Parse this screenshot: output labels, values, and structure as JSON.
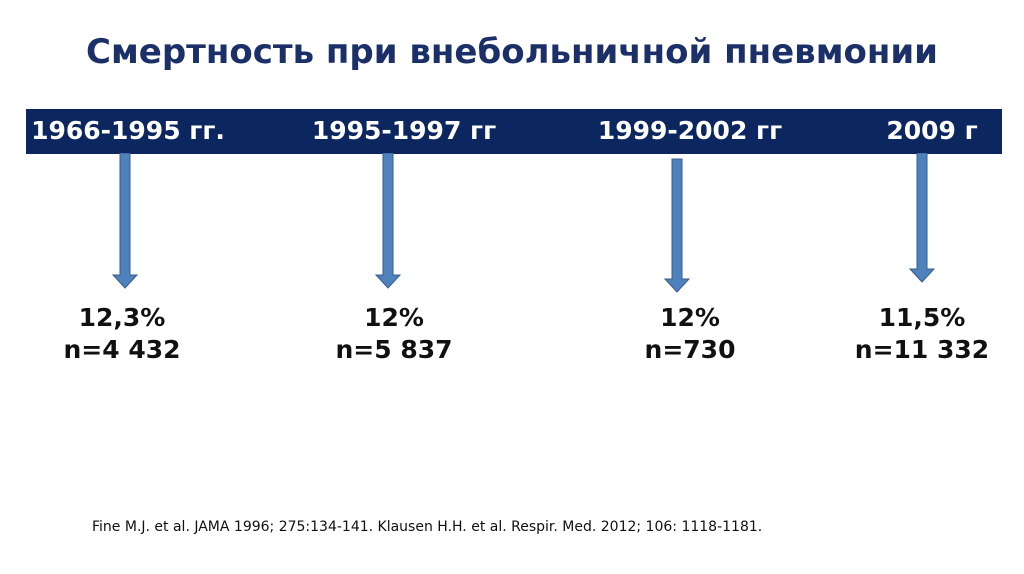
{
  "title": "Смертность при внебольничной пневмонии",
  "periods": [
    {
      "label": "1966-1995 гг.",
      "percent": "12,3%",
      "n": "n=4 432"
    },
    {
      "label": "1995-1997 гг",
      "percent": "12%",
      "n": "n=5 837"
    },
    {
      "label": "1999-2002 гг",
      "percent": "12%",
      "n": "n=730"
    },
    {
      "label": "2009 г",
      "percent": "11,5%",
      "n": "n=11 332"
    }
  ],
  "reference": "Fine M.J. et al. JAMA 1996; 275:134-141. Klausen H.H. et al. Respir. Med. 2012; 106: 1118-1181.",
  "colors": {
    "bar": "#0c2760",
    "arrow": "#4f81bd",
    "title": "#1b2f68"
  }
}
